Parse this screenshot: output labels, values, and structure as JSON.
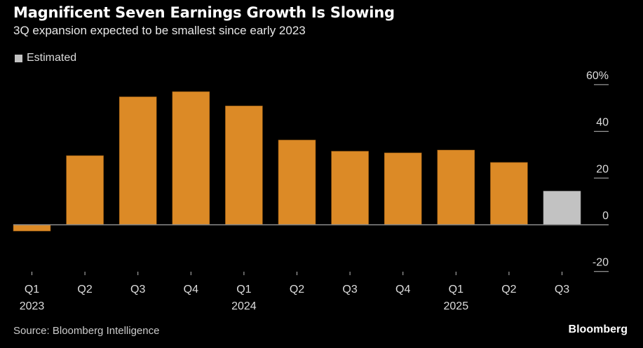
{
  "chart_data": {
    "type": "bar",
    "title": "Magnificent Seven Earnings Growth Is Slowing",
    "subtitle": "3Q expansion expected to be smallest since early 2023",
    "xlabel": "",
    "ylabel": "",
    "legend": {
      "entries": [
        {
          "label": "Estimated",
          "color": "#c2c2c2"
        }
      ],
      "placement": "top-left"
    },
    "categories": [
      "Q1 2023",
      "Q2 2023",
      "Q3 2023",
      "Q4 2023",
      "Q1 2024",
      "Q2 2024",
      "Q3 2024",
      "Q4 2024",
      "Q1 2025",
      "Q2 2025",
      "Q3 2025"
    ],
    "tick_labels": [
      {
        "quarter": "Q1",
        "year": "2023"
      },
      {
        "quarter": "Q2",
        "year": ""
      },
      {
        "quarter": "Q3",
        "year": ""
      },
      {
        "quarter": "Q4",
        "year": ""
      },
      {
        "quarter": "Q1",
        "year": "2024"
      },
      {
        "quarter": "Q2",
        "year": ""
      },
      {
        "quarter": "Q3",
        "year": ""
      },
      {
        "quarter": "Q4",
        "year": ""
      },
      {
        "quarter": "Q1",
        "year": "2025"
      },
      {
        "quarter": "Q2",
        "year": ""
      },
      {
        "quarter": "Q3",
        "year": ""
      }
    ],
    "values": [
      -2.7,
      29.6,
      54.8,
      57.0,
      50.9,
      36.3,
      31.5,
      30.8,
      32.0,
      26.7,
      14.4
    ],
    "estimated": [
      false,
      false,
      false,
      false,
      false,
      false,
      false,
      false,
      false,
      false,
      true
    ],
    "colors": {
      "actual": "#dc8a26",
      "estimated": "#c2c2c2",
      "zero_line": "#8a8a8a",
      "tick": "#bbbbbb"
    },
    "ylim": [
      -20,
      60
    ],
    "yticks": [
      {
        "value": 60,
        "label": "60%"
      },
      {
        "value": 40,
        "label": "40"
      },
      {
        "value": 20,
        "label": "20"
      },
      {
        "value": 0,
        "label": "0"
      },
      {
        "value": -20,
        "label": "-20"
      }
    ],
    "grid": false,
    "y_axis_side": "right"
  },
  "footer": {
    "source": "Source: Bloomberg Intelligence",
    "brand": "Bloomberg"
  }
}
